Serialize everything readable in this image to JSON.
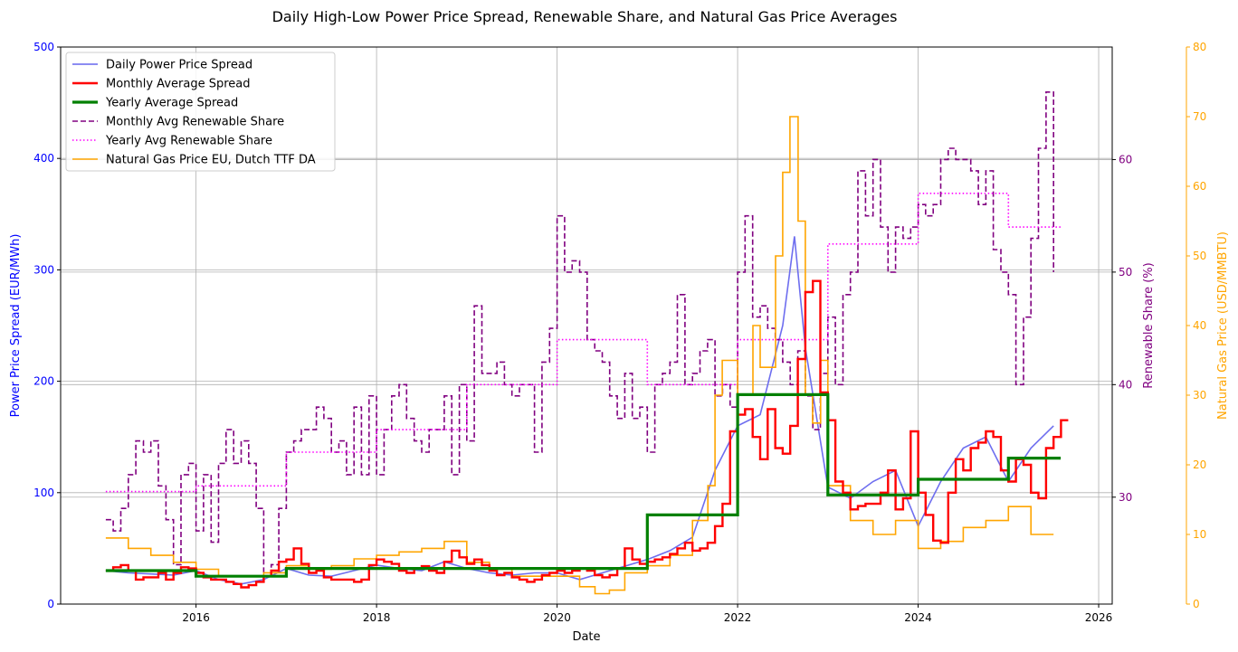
{
  "chart_data": {
    "type": "line",
    "title": "Daily High-Low Power Price Spread, Renewable Share, and Natural Gas Price Averages",
    "xlabel": "Date",
    "xlim": [
      2014.5,
      2026.15
    ],
    "x_ticks": [
      2016,
      2018,
      2020,
      2022,
      2024,
      2026
    ],
    "grid": true,
    "legend_placement": "top-left",
    "axes": {
      "left": {
        "label": "Power Price Spread (EUR/MWh)",
        "ylim": [
          0,
          500
        ],
        "ticks": [
          0,
          100,
          200,
          300,
          400,
          500
        ],
        "color": "#0000ff"
      },
      "right": {
        "label": "Renewable Share (%)",
        "ylim": [
          20.5,
          70
        ],
        "ticks": [
          30,
          40,
          50,
          60
        ],
        "color": "#800080"
      },
      "right2": {
        "label": "Natural Gas Price (USD/MMBTU)",
        "ylim": [
          0,
          80
        ],
        "ticks": [
          0,
          10,
          20,
          30,
          40,
          50,
          60,
          70,
          80
        ],
        "color": "#ffa500"
      }
    },
    "series": [
      {
        "name": "Daily Power Price Spread",
        "axis": "left",
        "color": "#6666ee",
        "style": "solid",
        "x": [
          2015.0,
          2015.25,
          2015.5,
          2015.75,
          2016.0,
          2016.25,
          2016.5,
          2016.75,
          2017.0,
          2017.25,
          2017.5,
          2017.75,
          2018.0,
          2018.25,
          2018.5,
          2018.75,
          2019.0,
          2019.25,
          2019.5,
          2019.75,
          2020.0,
          2020.25,
          2020.5,
          2020.75,
          2021.0,
          2021.25,
          2021.5,
          2021.75,
          2022.0,
          2022.25,
          2022.5,
          2022.63,
          2022.75,
          2023.0,
          2023.25,
          2023.5,
          2023.75,
          2024.0,
          2024.25,
          2024.5,
          2024.75,
          2025.0,
          2025.25,
          2025.5
        ],
        "y": [
          30,
          28,
          27,
          26,
          30,
          22,
          18,
          22,
          32,
          26,
          25,
          30,
          35,
          32,
          30,
          38,
          32,
          28,
          26,
          28,
          28,
          22,
          28,
          34,
          40,
          48,
          60,
          120,
          160,
          170,
          250,
          330,
          230,
          105,
          95,
          110,
          120,
          70,
          110,
          140,
          150,
          110,
          140,
          160
        ]
      },
      {
        "name": "Monthly Average Spread",
        "axis": "left",
        "color": "#ff0000",
        "style": "step",
        "x": [
          2015.0,
          2015.083,
          2015.167,
          2015.25,
          2015.333,
          2015.417,
          2015.5,
          2015.583,
          2015.667,
          2015.75,
          2015.833,
          2015.917,
          2016.0,
          2016.083,
          2016.167,
          2016.25,
          2016.333,
          2016.417,
          2016.5,
          2016.583,
          2016.667,
          2016.75,
          2016.833,
          2016.917,
          2017.0,
          2017.083,
          2017.167,
          2017.25,
          2017.333,
          2017.417,
          2017.5,
          2017.583,
          2017.667,
          2017.75,
          2017.833,
          2017.917,
          2018.0,
          2018.083,
          2018.167,
          2018.25,
          2018.333,
          2018.417,
          2018.5,
          2018.583,
          2018.667,
          2018.75,
          2018.833,
          2018.917,
          2019.0,
          2019.083,
          2019.167,
          2019.25,
          2019.333,
          2019.417,
          2019.5,
          2019.583,
          2019.667,
          2019.75,
          2019.833,
          2019.917,
          2020.0,
          2020.083,
          2020.167,
          2020.25,
          2020.333,
          2020.417,
          2020.5,
          2020.583,
          2020.667,
          2020.75,
          2020.833,
          2020.917,
          2021.0,
          2021.083,
          2021.167,
          2021.25,
          2021.333,
          2021.417,
          2021.5,
          2021.583,
          2021.667,
          2021.75,
          2021.833,
          2021.917,
          2022.0,
          2022.083,
          2022.167,
          2022.25,
          2022.333,
          2022.417,
          2022.5,
          2022.583,
          2022.667,
          2022.75,
          2022.833,
          2022.917,
          2023.0,
          2023.083,
          2023.167,
          2023.25,
          2023.333,
          2023.417,
          2023.5,
          2023.583,
          2023.667,
          2023.75,
          2023.833,
          2023.917,
          2024.0,
          2024.083,
          2024.167,
          2024.25,
          2024.333,
          2024.417,
          2024.5,
          2024.583,
          2024.667,
          2024.75,
          2024.833,
          2024.917,
          2025.0,
          2025.083,
          2025.167,
          2025.25,
          2025.333,
          2025.417,
          2025.5,
          2025.583
        ],
        "y": [
          30,
          33,
          35,
          30,
          22,
          24,
          24,
          28,
          22,
          28,
          33,
          32,
          28,
          24,
          22,
          22,
          20,
          18,
          15,
          17,
          20,
          25,
          30,
          38,
          40,
          50,
          36,
          28,
          30,
          24,
          22,
          22,
          22,
          20,
          22,
          35,
          40,
          38,
          36,
          30,
          28,
          32,
          34,
          30,
          28,
          38,
          48,
          42,
          36,
          40,
          35,
          30,
          26,
          28,
          24,
          22,
          20,
          22,
          26,
          28,
          30,
          28,
          30,
          32,
          30,
          26,
          24,
          26,
          32,
          50,
          40,
          36,
          38,
          40,
          42,
          45,
          50,
          55,
          48,
          50,
          55,
          70,
          90,
          155,
          170,
          175,
          150,
          130,
          175,
          140,
          135,
          160,
          220,
          280,
          290,
          190,
          165,
          110,
          100,
          85,
          88,
          90,
          90,
          100,
          120,
          85,
          95,
          155,
          100,
          80,
          57,
          55,
          100,
          130,
          120,
          140,
          145,
          155,
          150,
          120,
          110,
          130,
          125,
          100,
          95,
          140,
          150,
          165
        ]
      },
      {
        "name": "Yearly Average Spread",
        "axis": "left",
        "color": "#008000",
        "style": "step",
        "x": [
          2015,
          2016,
          2017,
          2018,
          2019,
          2020,
          2021,
          2022,
          2023,
          2024,
          2025,
          2025.58
        ],
        "y": [
          30,
          25,
          32,
          32,
          32,
          32,
          80,
          188,
          98,
          112,
          131,
          131
        ]
      },
      {
        "name": "Monthly Avg Renewable Share",
        "axis": "right",
        "color": "#800080",
        "style": "dashed-step",
        "x": [
          2015.0,
          2015.083,
          2015.167,
          2015.25,
          2015.333,
          2015.417,
          2015.5,
          2015.583,
          2015.667,
          2015.75,
          2015.833,
          2015.917,
          2016.0,
          2016.083,
          2016.167,
          2016.25,
          2016.333,
          2016.417,
          2016.5,
          2016.583,
          2016.667,
          2016.75,
          2016.833,
          2016.917,
          2017.0,
          2017.083,
          2017.167,
          2017.25,
          2017.333,
          2017.417,
          2017.5,
          2017.583,
          2017.667,
          2017.75,
          2017.833,
          2017.917,
          2018.0,
          2018.083,
          2018.167,
          2018.25,
          2018.333,
          2018.417,
          2018.5,
          2018.583,
          2018.667,
          2018.75,
          2018.833,
          2018.917,
          2019.0,
          2019.083,
          2019.167,
          2019.25,
          2019.333,
          2019.417,
          2019.5,
          2019.583,
          2019.667,
          2019.75,
          2019.833,
          2019.917,
          2020.0,
          2020.083,
          2020.167,
          2020.25,
          2020.333,
          2020.417,
          2020.5,
          2020.583,
          2020.667,
          2020.75,
          2020.833,
          2020.917,
          2021.0,
          2021.083,
          2021.167,
          2021.25,
          2021.333,
          2021.417,
          2021.5,
          2021.583,
          2021.667,
          2021.75,
          2021.833,
          2021.917,
          2022.0,
          2022.083,
          2022.167,
          2022.25,
          2022.333,
          2022.417,
          2022.5,
          2022.583,
          2022.667,
          2022.75,
          2022.833,
          2022.917,
          2023.0,
          2023.083,
          2023.167,
          2023.25,
          2023.333,
          2023.417,
          2023.5,
          2023.583,
          2023.667,
          2023.75,
          2023.833,
          2023.917,
          2024.0,
          2024.083,
          2024.167,
          2024.25,
          2024.333,
          2024.417,
          2024.5,
          2024.583,
          2024.667,
          2024.75,
          2024.833,
          2024.917,
          2025.0,
          2025.083,
          2025.167,
          2025.25,
          2025.333,
          2025.417,
          2025.5
        ],
        "y": [
          28,
          27,
          29,
          32,
          35,
          34,
          35,
          31,
          28,
          24,
          32,
          33,
          27,
          32,
          26,
          33,
          36,
          33,
          35,
          33,
          29,
          23,
          24,
          29,
          34,
          35,
          36,
          36,
          38,
          37,
          34,
          35,
          32,
          38,
          32,
          39,
          32,
          36,
          39,
          40,
          37,
          35,
          34,
          36,
          36,
          39,
          32,
          40,
          35,
          47,
          41,
          41,
          42,
          40,
          39,
          40,
          40,
          34,
          42,
          45,
          55,
          50,
          51,
          50,
          44,
          43,
          42,
          39,
          37,
          41,
          37,
          38,
          34,
          40,
          41,
          42,
          48,
          40,
          41,
          43,
          44,
          39,
          40,
          38,
          50,
          55,
          46,
          47,
          45,
          44,
          42,
          40,
          43,
          39,
          36,
          41,
          46,
          40,
          48,
          50,
          59,
          55,
          60,
          54,
          50,
          54,
          53,
          54,
          56,
          55,
          56,
          60,
          61,
          60,
          60,
          59,
          56,
          59,
          52,
          50,
          48,
          40,
          46,
          53,
          61,
          66,
          50
        ]
      },
      {
        "name": "Yearly Avg Renewable Share",
        "axis": "right",
        "color": "#ff00ff",
        "style": "dotted-step",
        "x": [
          2015,
          2016,
          2017,
          2018,
          2019,
          2020,
          2021,
          2022,
          2023,
          2024,
          2025,
          2025.58
        ],
        "y": [
          30.5,
          31,
          34,
          36,
          40,
          44,
          40,
          44,
          52.5,
          57,
          54,
          54
        ]
      },
      {
        "name": "Natural Gas Price EU, Dutch TTF DA",
        "axis": "right2",
        "color": "#ffa500",
        "style": "step",
        "x": [
          2015.0,
          2015.25,
          2015.5,
          2015.75,
          2016.0,
          2016.25,
          2016.5,
          2016.75,
          2017.0,
          2017.25,
          2017.5,
          2017.75,
          2018.0,
          2018.25,
          2018.5,
          2018.75,
          2019.0,
          2019.25,
          2019.5,
          2019.75,
          2020.0,
          2020.25,
          2020.42,
          2020.58,
          2020.75,
          2021.0,
          2021.25,
          2021.5,
          2021.67,
          2021.75,
          2021.83,
          2022.0,
          2022.17,
          2022.25,
          2022.42,
          2022.5,
          2022.58,
          2022.67,
          2022.75,
          2022.83,
          2022.92,
          2023.0,
          2023.25,
          2023.5,
          2023.75,
          2024.0,
          2024.25,
          2024.5,
          2024.75,
          2025.0,
          2025.25,
          2025.5
        ],
        "y": [
          9.5,
          8,
          7,
          6,
          5,
          4,
          4,
          4.5,
          5.5,
          5,
          5.5,
          6.5,
          7,
          7.5,
          8,
          9,
          6,
          5,
          4,
          4,
          4,
          2.5,
          1.5,
          2,
          4.5,
          5.5,
          7,
          12,
          17,
          30,
          35,
          30,
          40,
          34,
          50,
          62,
          70,
          55,
          30,
          26,
          35,
          17,
          12,
          10,
          12,
          8,
          9,
          11,
          12,
          14,
          10,
          10
        ]
      }
    ]
  }
}
